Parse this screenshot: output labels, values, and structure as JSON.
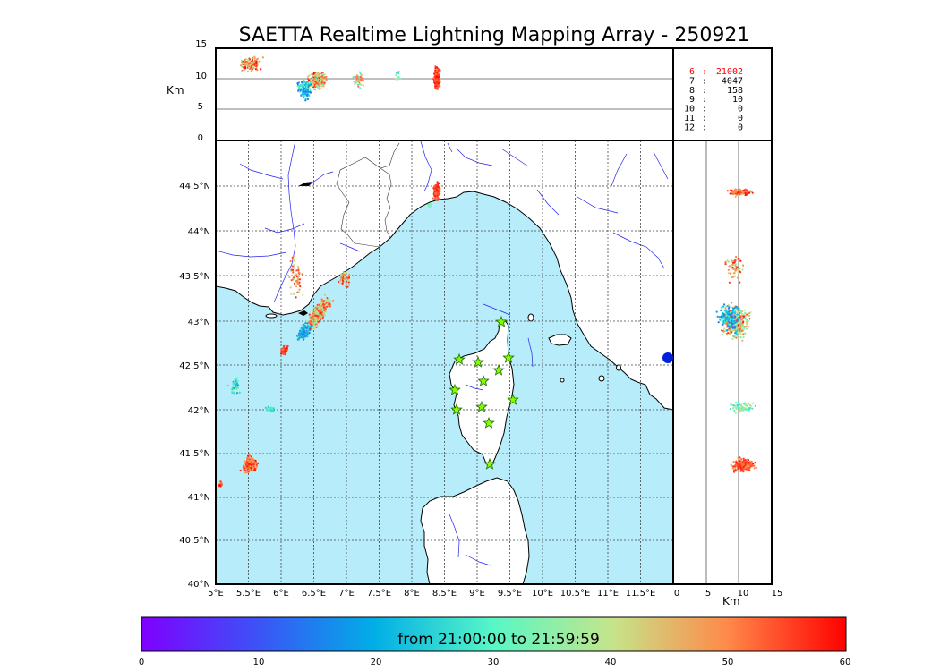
{
  "title": "SAETTA Realtime Lightning Mapping Array - 250921",
  "map": {
    "lon_ticks": [
      "5°E",
      "5.5°E",
      "6°E",
      "6.5°E",
      "7°E",
      "7.5°E",
      "8°E",
      "8.5°E",
      "9°E",
      "9.5°E",
      "10°E",
      "10.5°E",
      "11°E",
      "11.5°E"
    ],
    "lat_ticks": [
      "40°N",
      "40.5°N",
      "41°N",
      "41.5°N",
      "42°N",
      "42.5°N",
      "43°N",
      "43.5°N",
      "44°N",
      "44.5°N"
    ]
  },
  "altitude_panel": {
    "ylabel": "Km",
    "y_ticks": [
      "0",
      "5",
      "10",
      "15"
    ]
  },
  "side_panel": {
    "xlabel": "Km",
    "x_ticks": [
      "0",
      "5",
      "10",
      "15"
    ]
  },
  "station_counts": [
    {
      "n": "6",
      "sep": ":",
      "count": "21002",
      "color": "#ff0000"
    },
    {
      "n": "7",
      "sep": ":",
      "count": "4047",
      "color": "#000000"
    },
    {
      "n": "8",
      "sep": ":",
      "count": "158",
      "color": "#000000"
    },
    {
      "n": "9",
      "sep": ":",
      "count": "10",
      "color": "#000000"
    },
    {
      "n": "10",
      "sep": ":",
      "count": "0",
      "color": "#000000"
    },
    {
      "n": "11",
      "sep": ":",
      "count": "0",
      "color": "#000000"
    },
    {
      "n": "12",
      "sep": ":",
      "count": "0",
      "color": "#000000"
    }
  ],
  "colorbar": {
    "label": "from 21:00:00 to 21:59:59",
    "ticks": [
      "0",
      "10",
      "20",
      "30",
      "40",
      "50",
      "60"
    ]
  },
  "colors": {
    "sea": "#b7ecfb",
    "land": "#ffffff",
    "river": "#2222ee",
    "station": "#7fff00"
  }
}
